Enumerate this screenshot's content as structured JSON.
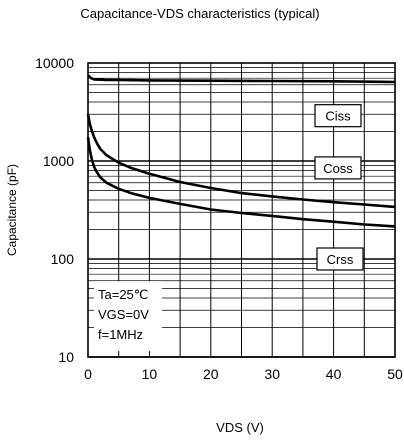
{
  "chart_data": {
    "type": "line",
    "title": "Capacitance-VDS characteristics (typical)",
    "xlabel": "VDS (V)",
    "ylabel": "Capacitance (pF)",
    "xlim": [
      0,
      50
    ],
    "ylim": [
      10,
      10000
    ],
    "yscale": "log",
    "grid": true,
    "x_ticks": [
      0,
      10,
      20,
      30,
      40,
      50
    ],
    "y_ticks": [
      10,
      100,
      1000,
      10000
    ],
    "conditions": [
      "Ta=25℃",
      "VGS=0V",
      "f=1MHz"
    ],
    "series": [
      {
        "name": "Ciss",
        "x": [
          0,
          0.5,
          1,
          2,
          3,
          5,
          10,
          20,
          30,
          40,
          50
        ],
        "y": [
          7500,
          7000,
          6800,
          6750,
          6700,
          6700,
          6650,
          6600,
          6550,
          6500,
          6400
        ]
      },
      {
        "name": "Coss",
        "x": [
          0,
          0.3,
          0.6,
          1,
          1.5,
          2,
          3,
          5,
          7,
          10,
          15,
          20,
          25,
          30,
          35,
          40,
          45,
          50
        ],
        "y": [
          3000,
          2400,
          2050,
          1750,
          1500,
          1330,
          1150,
          960,
          850,
          740,
          610,
          530,
          470,
          435,
          405,
          380,
          360,
          340
        ]
      },
      {
        "name": "Crss",
        "x": [
          0,
          0.3,
          0.6,
          1,
          1.5,
          2,
          3,
          5,
          7,
          10,
          15,
          20,
          25,
          30,
          35,
          40,
          45,
          50
        ],
        "y": [
          1750,
          1300,
          1050,
          870,
          760,
          680,
          600,
          520,
          470,
          420,
          365,
          320,
          295,
          275,
          255,
          240,
          225,
          215
        ]
      }
    ]
  }
}
